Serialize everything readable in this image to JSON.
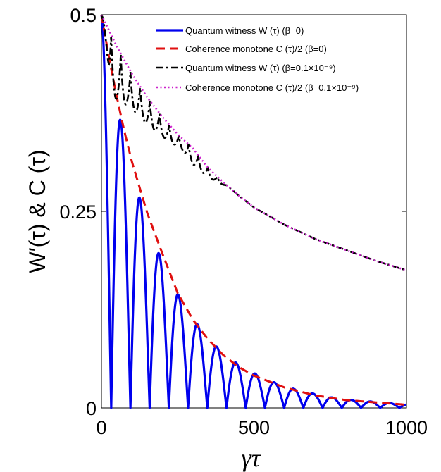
{
  "chart_data": {
    "type": "line",
    "xlabel": "γτ",
    "ylabel": "W′(τ) & C (τ)",
    "xlim": [
      0,
      1000
    ],
    "ylim": [
      0,
      0.5
    ],
    "x_ticks": [
      0,
      500,
      1000
    ],
    "x_tick_labels": [
      "0",
      "500",
      "1000"
    ],
    "y_ticks": [
      0,
      0.25,
      0.5
    ],
    "y_tick_labels": [
      "0",
      "0.25",
      "0.5"
    ],
    "legend_position": "top-right",
    "legend": [
      {
        "label": "Quantum witness  W (τ) (β=0)",
        "color": "#0000ee",
        "style": "solid"
      },
      {
        "label": "Coherence monotone  C (τ)/2 (β=0)",
        "color": "#e01010",
        "style": "dashed"
      },
      {
        "label": "Quantum witness  W (τ) (β=0.1×10⁻⁹)",
        "color": "#000000",
        "style": "dashdot"
      },
      {
        "label": "Coherence monotone  C (τ)/2 (β=0.1×10⁻⁹)",
        "color": "#cc22cc",
        "style": "dotted"
      }
    ],
    "series": [
      {
        "name": "Quantum witness  W (τ) (β=0)",
        "color": "#0000ee",
        "style": "solid",
        "note": "oscillating |cos| envelope under C(τ)/2 (β=0), zeros every ~32",
        "zeros": [
          32,
          95,
          158,
          222,
          285,
          348,
          412,
          475,
          538,
          602,
          665,
          728,
          792,
          855,
          918,
          982
        ],
        "peaks": [
          {
            "x": 0,
            "y": 0.5
          },
          {
            "x": 63,
            "y": 0.365
          },
          {
            "x": 127,
            "y": 0.265
          },
          {
            "x": 190,
            "y": 0.195
          },
          {
            "x": 253,
            "y": 0.143
          },
          {
            "x": 317,
            "y": 0.105
          },
          {
            "x": 380,
            "y": 0.077
          },
          {
            "x": 443,
            "y": 0.057
          },
          {
            "x": 507,
            "y": 0.043
          },
          {
            "x": 570,
            "y": 0.032
          },
          {
            "x": 633,
            "y": 0.024
          },
          {
            "x": 697,
            "y": 0.018
          },
          {
            "x": 760,
            "y": 0.013
          },
          {
            "x": 823,
            "y": 0.01
          },
          {
            "x": 887,
            "y": 0.008
          },
          {
            "x": 950,
            "y": 0.006
          }
        ]
      },
      {
        "name": "Coherence monotone  C (τ)/2 (β=0)",
        "color": "#e01010",
        "style": "dashed",
        "x": [
          0,
          25,
          50,
          75,
          100,
          150,
          200,
          250,
          300,
          350,
          400,
          450,
          500,
          600,
          700,
          800,
          900,
          1000
        ],
        "y": [
          0.5,
          0.445,
          0.396,
          0.352,
          0.313,
          0.248,
          0.196,
          0.146,
          0.112,
          0.087,
          0.067,
          0.052,
          0.041,
          0.026,
          0.016,
          0.01,
          0.007,
          0.004
        ]
      },
      {
        "name": "Quantum witness  W (τ) (β=0.1×10⁻⁹)",
        "color": "#000000",
        "style": "dashdot",
        "note": "oscillates just below C(τ)/2 (β=0.1×10⁻⁹) for γτ < ~400, then coincides with it",
        "troughs": [
          {
            "x": 25,
            "y": 0.405
          },
          {
            "x": 55,
            "y": 0.39
          },
          {
            "x": 85,
            "y": 0.385
          },
          {
            "x": 115,
            "y": 0.375
          },
          {
            "x": 150,
            "y": 0.36
          },
          {
            "x": 185,
            "y": 0.35
          },
          {
            "x": 220,
            "y": 0.34
          },
          {
            "x": 260,
            "y": 0.33
          },
          {
            "x": 300,
            "y": 0.31
          }
        ]
      },
      {
        "name": "Coherence monotone  C (τ)/2 (β=0.1×10⁻⁹)",
        "color": "#cc22cc",
        "style": "dotted",
        "x": [
          0,
          50,
          100,
          150,
          200,
          250,
          300,
          350,
          400,
          450,
          500,
          600,
          700,
          800,
          900,
          1000
        ],
        "y": [
          0.5,
          0.46,
          0.425,
          0.395,
          0.37,
          0.348,
          0.33,
          0.305,
          0.287,
          0.27,
          0.255,
          0.233,
          0.215,
          0.201,
          0.187,
          0.175
        ]
      }
    ]
  }
}
